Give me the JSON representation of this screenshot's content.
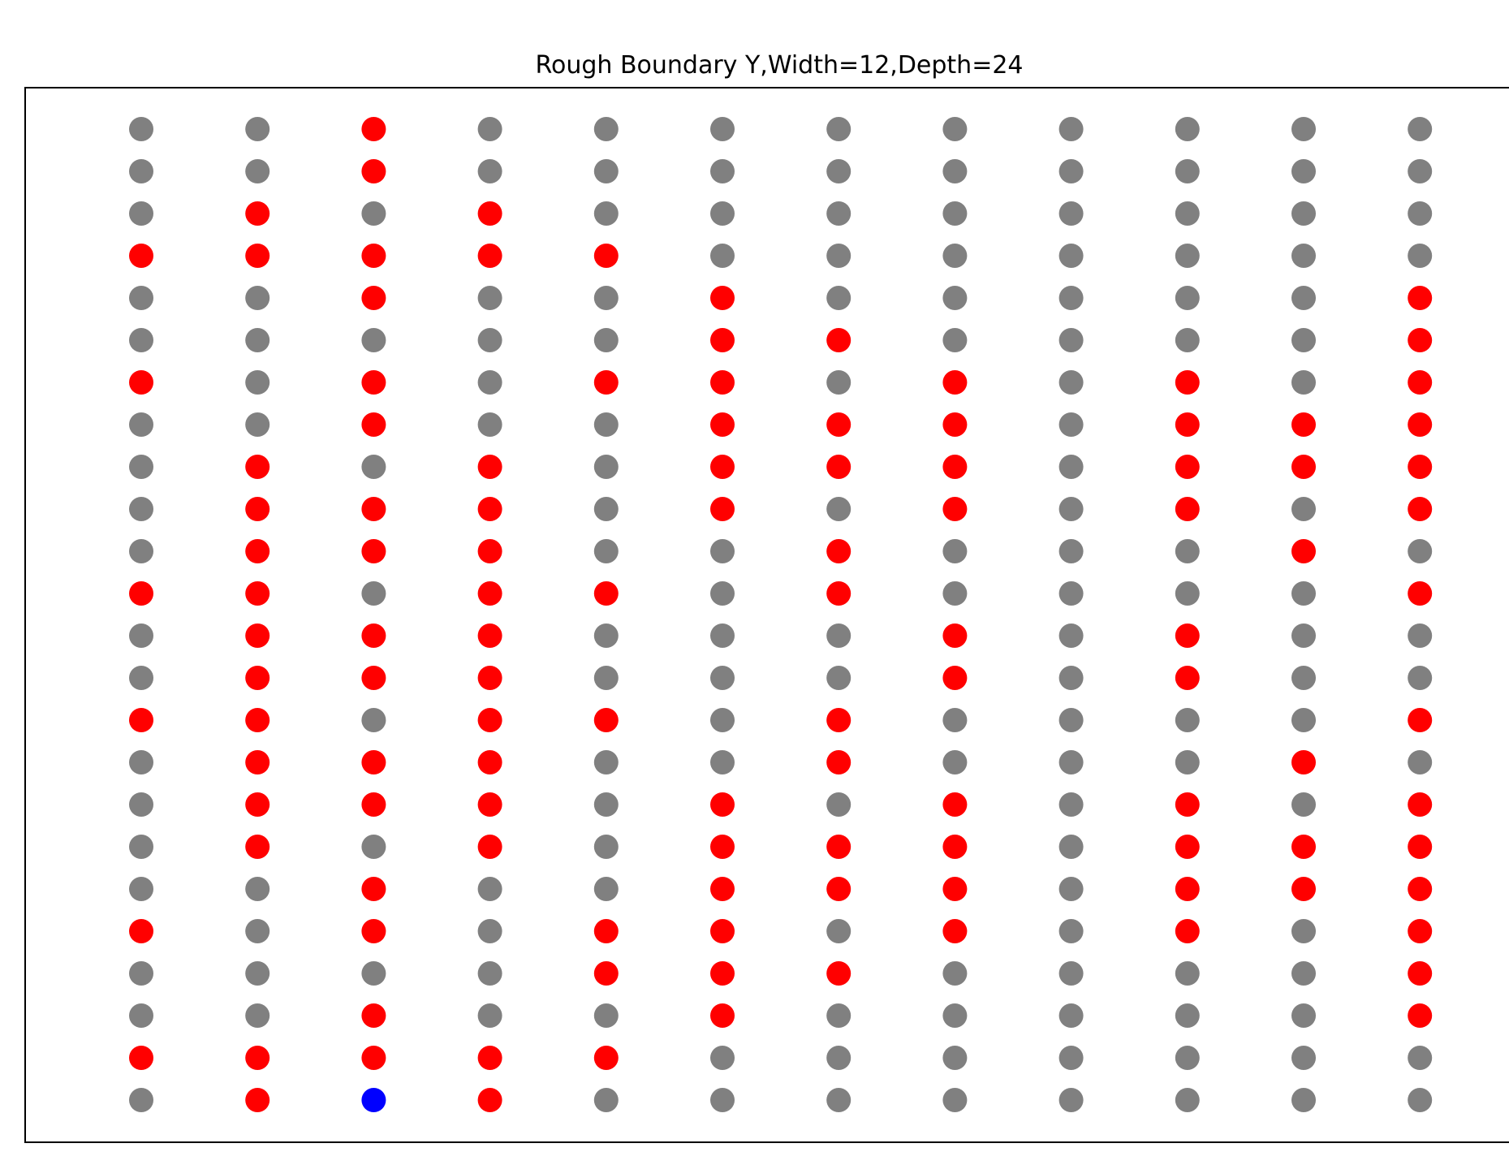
{
  "chart_data": {
    "type": "scatter",
    "title": "Rough Boundary Y,Width=12,Depth=24",
    "xlabel": "",
    "ylabel": "",
    "grid": false,
    "legend": "none",
    "columns": 12,
    "rows": 24,
    "colors": {
      "g": "#808080",
      "r": "#ff0000",
      "b": "#0000ff"
    },
    "grid_states_top_to_bottom": [
      "ggrggggggggg",
      "ggrggggggggg",
      "grgrgggggggg",
      "rrrrrggggggg",
      "ggrggrgggggr",
      "gggggrrggggr",
      "rgrgrrgrgrgr",
      "ggrggrrrgrrr",
      "grgrgrrrgrrr",
      "grrrgrgrgrgr",
      "grrrggrgggrg",
      "rrgrrgrggggr",
      "grrrgggrgrgg",
      "grrrgggrgrgg",
      "rrgrrgrggggr",
      "grrrggrgggrg",
      "grrrgrgrgrgr",
      "grgrgrrrgrrr",
      "ggrggrrrgrrr",
      "rgrgrrgrgrgr",
      "ggggrrrggggr",
      "ggrggrgggggr",
      "rrrrrggggggg",
      "grbrgggggggg"
    ]
  }
}
